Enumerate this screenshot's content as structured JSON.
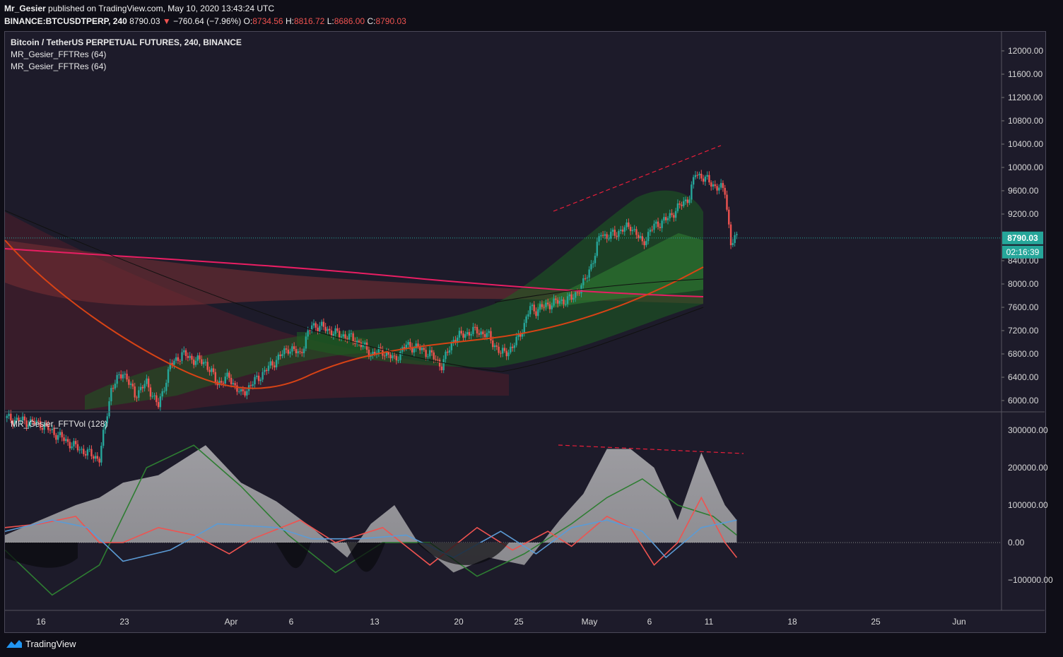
{
  "header": {
    "author": "Mr_Gesier",
    "published": "published on TradingView.com, May 10, 2020 13:43:24 UTC",
    "symbol": "BINANCE:BTCUSDTPERP, 240",
    "last": "8790.03",
    "change": "−760.64 (−7.96%)",
    "o_label": "O:",
    "o": "8734.56",
    "h_label": "H:",
    "h": "8816.72",
    "l_label": "L:",
    "l": "8686.00",
    "c_label": "C:",
    "c": "8790.03"
  },
  "legend": {
    "title": "Bitcoin / TetherUS PERPETUAL FUTURES, 240, BINANCE",
    "ind1": "MR_Gesier_FFTRes (64)",
    "ind2": "MR_Gesier_FFTRes (64)",
    "vol": "MR_Gesier_FFTVol (128)"
  },
  "price_badge": "8790.03",
  "time_badge": "02:16:39",
  "footer": {
    "brand": "TradingView"
  },
  "colors": {
    "up": "#26a69a",
    "down": "#ef5350",
    "badge": "#26a69a",
    "trend": "#e91e3a"
  },
  "chart_data": [
    {
      "type": "candlestick",
      "title": "Bitcoin / TetherUS PERPETUAL FUTURES, 240, BINANCE",
      "y_ticks": [
        "12000.00",
        "11600.00",
        "11200.00",
        "10800.00",
        "10400.00",
        "10000.00",
        "9600.00",
        "9200.00",
        "8400.00",
        "8000.00",
        "7600.00",
        "7200.00",
        "6800.00",
        "6400.00",
        "6000.00"
      ],
      "x_ticks": [
        "16",
        "23",
        "Apr",
        "6",
        "13",
        "20",
        "25",
        "May",
        "6",
        "11",
        "18",
        "25",
        "Jun"
      ],
      "ylim": [
        5800,
        12200
      ],
      "last_price": 8790.03,
      "close_path": [
        {
          "x": 10,
          "y": 5700
        },
        {
          "x": 13,
          "y": 5600
        },
        {
          "x": 16,
          "y": 5200
        },
        {
          "x": 18,
          "y": 5000
        },
        {
          "x": 19,
          "y": 6200
        },
        {
          "x": 20,
          "y": 6500
        },
        {
          "x": 21,
          "y": 6100
        },
        {
          "x": 22,
          "y": 6300
        },
        {
          "x": 23,
          "y": 5900
        },
        {
          "x": 24,
          "y": 6600
        },
        {
          "x": 25,
          "y": 6800
        },
        {
          "x": 26,
          "y": 6700
        },
        {
          "x": 27,
          "y": 6650
        },
        {
          "x": 28,
          "y": 6300
        },
        {
          "x": 29,
          "y": 6400
        },
        {
          "x": 30,
          "y": 6100
        },
        {
          "x": 31,
          "y": 6300
        },
        {
          "x": 32,
          "y": 6500
        },
        {
          "x": 33,
          "y": 6700
        },
        {
          "x": 34,
          "y": 6900
        },
        {
          "x": 35,
          "y": 6800
        },
        {
          "x": 36,
          "y": 7300
        },
        {
          "x": 37,
          "y": 7250
        },
        {
          "x": 38,
          "y": 7150
        },
        {
          "x": 39,
          "y": 7100
        },
        {
          "x": 40,
          "y": 7000
        },
        {
          "x": 41,
          "y": 6800
        },
        {
          "x": 42,
          "y": 6850
        },
        {
          "x": 43,
          "y": 6700
        },
        {
          "x": 44,
          "y": 6950
        },
        {
          "x": 45,
          "y": 6900
        },
        {
          "x": 46,
          "y": 6800
        },
        {
          "x": 47,
          "y": 6600
        },
        {
          "x": 48,
          "y": 7050
        },
        {
          "x": 49,
          "y": 7150
        },
        {
          "x": 50,
          "y": 7200
        },
        {
          "x": 51,
          "y": 7100
        },
        {
          "x": 52,
          "y": 6800
        },
        {
          "x": 53,
          "y": 6900
        },
        {
          "x": 54,
          "y": 7300
        },
        {
          "x": 54.5,
          "y": 7600
        },
        {
          "x": 55,
          "y": 7550
        },
        {
          "x": 56,
          "y": 7650
        },
        {
          "x": 57,
          "y": 7700
        },
        {
          "x": 58,
          "y": 7750
        },
        {
          "x": 59,
          "y": 8000
        },
        {
          "x": 60,
          "y": 8500
        },
        {
          "x": 60.5,
          "y": 8900
        },
        {
          "x": 61,
          "y": 8800
        },
        {
          "x": 62,
          "y": 8900
        },
        {
          "x": 63,
          "y": 9000
        },
        {
          "x": 64,
          "y": 8700
        },
        {
          "x": 65,
          "y": 9000
        },
        {
          "x": 66,
          "y": 9100
        },
        {
          "x": 67,
          "y": 9300
        },
        {
          "x": 68,
          "y": 9500
        },
        {
          "x": 68.5,
          "y": 9900
        },
        {
          "x": 69,
          "y": 9850
        },
        {
          "x": 70,
          "y": 9700
        },
        {
          "x": 71,
          "y": 9600
        },
        {
          "x": 71.5,
          "y": 8700
        },
        {
          "x": 72,
          "y": 8790
        }
      ],
      "annotation": "upper trend line (dashed)"
    },
    {
      "type": "area",
      "title": "MR_Gesier_FFTVol (128)",
      "y_ticks": [
        "300000.00",
        "200000.00",
        "100000.00",
        "0.00",
        "−100000.00"
      ],
      "ylim": [
        -180000,
        320000
      ],
      "series": [
        {
          "name": "",
          "color": "#c8c8c8",
          "points": [
            {
              "x": 10,
              "y": 20000
            },
            {
              "x": 16,
              "y": 100000
            },
            {
              "x": 18,
              "y": 120000
            },
            {
              "x": 20,
              "y": 160000
            },
            {
              "x": 23,
              "y": 180000
            },
            {
              "x": 27,
              "y": 260000
            },
            {
              "x": 30,
              "y": 160000
            },
            {
              "x": 33,
              "y": 110000
            },
            {
              "x": 36,
              "y": 40000
            },
            {
              "x": 39,
              "y": -40000
            },
            {
              "x": 41,
              "y": 50000
            },
            {
              "x": 43,
              "y": 100000
            },
            {
              "x": 45,
              "y": 0
            },
            {
              "x": 48,
              "y": -80000
            },
            {
              "x": 51,
              "y": -40000
            },
            {
              "x": 54,
              "y": -60000
            },
            {
              "x": 57,
              "y": 60000
            },
            {
              "x": 59,
              "y": 130000
            },
            {
              "x": 61,
              "y": 250000
            },
            {
              "x": 63,
              "y": 250000
            },
            {
              "x": 65,
              "y": 200000
            },
            {
              "x": 67,
              "y": 60000
            },
            {
              "x": 69,
              "y": 240000
            },
            {
              "x": 71,
              "y": 100000
            },
            {
              "x": 72,
              "y": 60000
            }
          ]
        },
        {
          "name": "",
          "color": "#2e7d32",
          "points": [
            {
              "x": 10,
              "y": -20000
            },
            {
              "x": 14,
              "y": -140000
            },
            {
              "x": 18,
              "y": -60000
            },
            {
              "x": 22,
              "y": 200000
            },
            {
              "x": 26,
              "y": 260000
            },
            {
              "x": 30,
              "y": 150000
            },
            {
              "x": 34,
              "y": 20000
            },
            {
              "x": 38,
              "y": -80000
            },
            {
              "x": 42,
              "y": 0
            },
            {
              "x": 46,
              "y": 0
            },
            {
              "x": 50,
              "y": -90000
            },
            {
              "x": 54,
              "y": -30000
            },
            {
              "x": 58,
              "y": 50000
            },
            {
              "x": 61,
              "y": 120000
            },
            {
              "x": 64,
              "y": 170000
            },
            {
              "x": 67,
              "y": 100000
            },
            {
              "x": 70,
              "y": 70000
            },
            {
              "x": 72,
              "y": 20000
            }
          ]
        },
        {
          "name": "",
          "color": "#ef5350",
          "points": [
            {
              "x": 10,
              "y": 40000
            },
            {
              "x": 13,
              "y": 50000
            },
            {
              "x": 16,
              "y": 70000
            },
            {
              "x": 18,
              "y": 0
            },
            {
              "x": 20,
              "y": 0
            },
            {
              "x": 23,
              "y": 40000
            },
            {
              "x": 26,
              "y": 20000
            },
            {
              "x": 29,
              "y": -30000
            },
            {
              "x": 31,
              "y": 10000
            },
            {
              "x": 35,
              "y": 60000
            },
            {
              "x": 38,
              "y": 0
            },
            {
              "x": 42,
              "y": 40000
            },
            {
              "x": 46,
              "y": -60000
            },
            {
              "x": 50,
              "y": 40000
            },
            {
              "x": 53,
              "y": -20000
            },
            {
              "x": 56,
              "y": 30000
            },
            {
              "x": 58,
              "y": -10000
            },
            {
              "x": 61,
              "y": 70000
            },
            {
              "x": 63,
              "y": 40000
            },
            {
              "x": 65,
              "y": -60000
            },
            {
              "x": 67,
              "y": 0
            },
            {
              "x": 69,
              "y": 120000
            },
            {
              "x": 71,
              "y": 0
            },
            {
              "x": 72,
              "y": -40000
            }
          ]
        },
        {
          "name": "",
          "color": "#5b9bd5",
          "points": [
            {
              "x": 10,
              "y": 30000
            },
            {
              "x": 14,
              "y": 60000
            },
            {
              "x": 17,
              "y": 40000
            },
            {
              "x": 20,
              "y": -50000
            },
            {
              "x": 24,
              "y": -20000
            },
            {
              "x": 28,
              "y": 50000
            },
            {
              "x": 33,
              "y": 40000
            },
            {
              "x": 36,
              "y": 10000
            },
            {
              "x": 40,
              "y": 10000
            },
            {
              "x": 44,
              "y": 20000
            },
            {
              "x": 48,
              "y": -40000
            },
            {
              "x": 52,
              "y": 30000
            },
            {
              "x": 55,
              "y": -30000
            },
            {
              "x": 58,
              "y": 40000
            },
            {
              "x": 61,
              "y": 60000
            },
            {
              "x": 64,
              "y": 30000
            },
            {
              "x": 66,
              "y": -40000
            },
            {
              "x": 69,
              "y": 40000
            },
            {
              "x": 72,
              "y": 60000
            }
          ]
        }
      ]
    }
  ]
}
